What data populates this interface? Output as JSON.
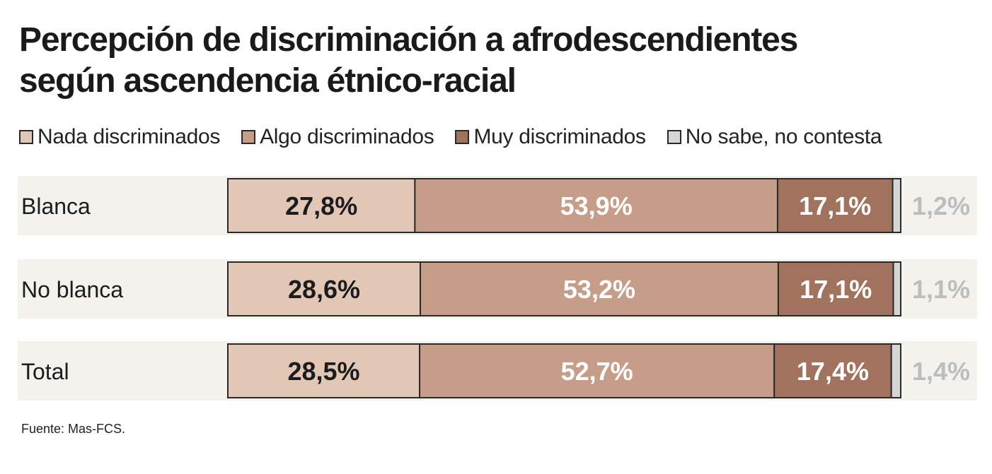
{
  "title": {
    "line1": "Percepción de discriminación a afrodescendientes",
    "line2": "según ascendencia étnico-racial"
  },
  "source": "Fuente: Mas-FCS.",
  "colors": {
    "nada": "#e2c7b6",
    "algo": "#c69d89",
    "muy": "#a1735e",
    "nsnc": "#d6d6d6",
    "row_bg": "#f3f2ed",
    "outside_label": "#bdbdbd",
    "border": "#2a2a2a"
  },
  "legend": [
    {
      "label": "Nada discriminados",
      "color": "#e2c7b6"
    },
    {
      "label": "Algo discriminados",
      "color": "#c69d89"
    },
    {
      "label": "Muy discriminados",
      "color": "#a1735e"
    },
    {
      "label": "No sabe, no contesta",
      "color": "#d6d6d6"
    }
  ],
  "chart_data": {
    "type": "bar",
    "orientation": "horizontal",
    "stacked": true,
    "categories": [
      "Blanca",
      "No blanca",
      "Total"
    ],
    "series": [
      {
        "name": "Nada discriminados",
        "values": [
          27.8,
          28.6,
          28.5
        ],
        "labels": [
          "27,8%",
          "28,6%",
          "28,5%"
        ]
      },
      {
        "name": "Algo discriminados",
        "values": [
          53.9,
          53.2,
          52.7
        ],
        "labels": [
          "53,9%",
          "53,2%",
          "52,7%"
        ]
      },
      {
        "name": "Muy discriminados",
        "values": [
          17.1,
          17.1,
          17.4
        ],
        "labels": [
          "17,1%",
          "17,1%",
          "17,4%"
        ]
      },
      {
        "name": "No sabe, no contesta",
        "values": [
          1.2,
          1.1,
          1.4
        ],
        "labels": [
          "1,2%",
          "1,1%",
          "1,4%"
        ]
      }
    ],
    "xlim": [
      0,
      100
    ],
    "legend_position": "top"
  }
}
